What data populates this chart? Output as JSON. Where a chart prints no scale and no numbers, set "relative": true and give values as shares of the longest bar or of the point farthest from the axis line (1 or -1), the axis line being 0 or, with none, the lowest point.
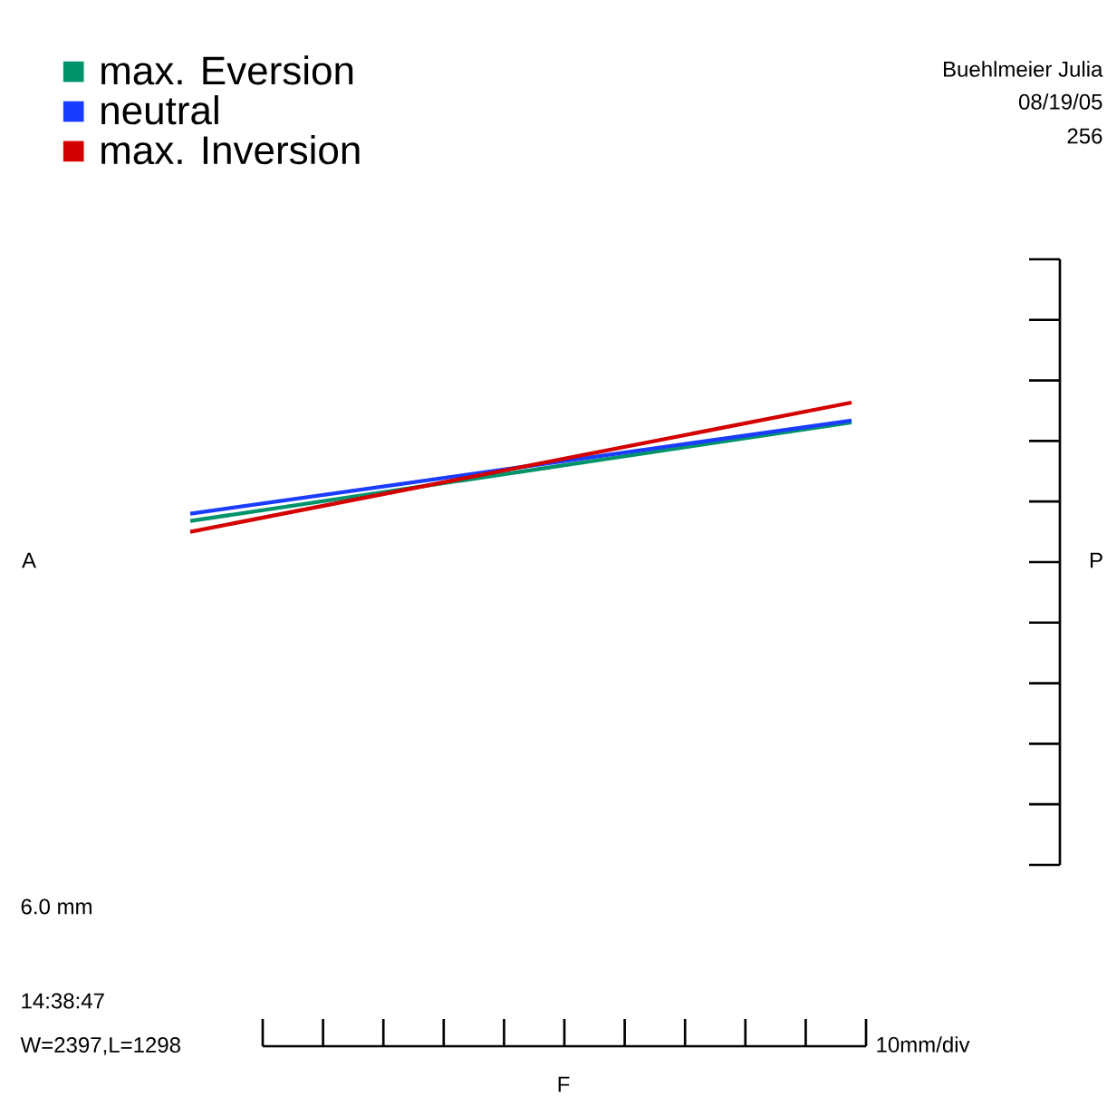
{
  "chart_data": {
    "type": "line",
    "relative": true,
    "categories": [
      null,
      null
    ],
    "legend": "top left",
    "marker": "none",
    "line_style": "solid",
    "series": [
      {
        "name": "max. Eversion",
        "color": "#00936a",
        "values": [
          0.084,
          0.846
        ]
      },
      {
        "name": "neutral",
        "color": "#1a3cff",
        "values": [
          0.14,
          0.86
        ]
      },
      {
        "name": "max. Inversion",
        "color": "#d40000",
        "values": [
          0,
          1.0
        ]
      }
    ],
    "annotations": [
      "Buehlmeier Julia",
      "08/19/05",
      "256",
      "A",
      "P",
      "F",
      "10mm/div",
      "6.0 mm",
      "14:38:47",
      "W=2397,L=1298"
    ]
  }
}
